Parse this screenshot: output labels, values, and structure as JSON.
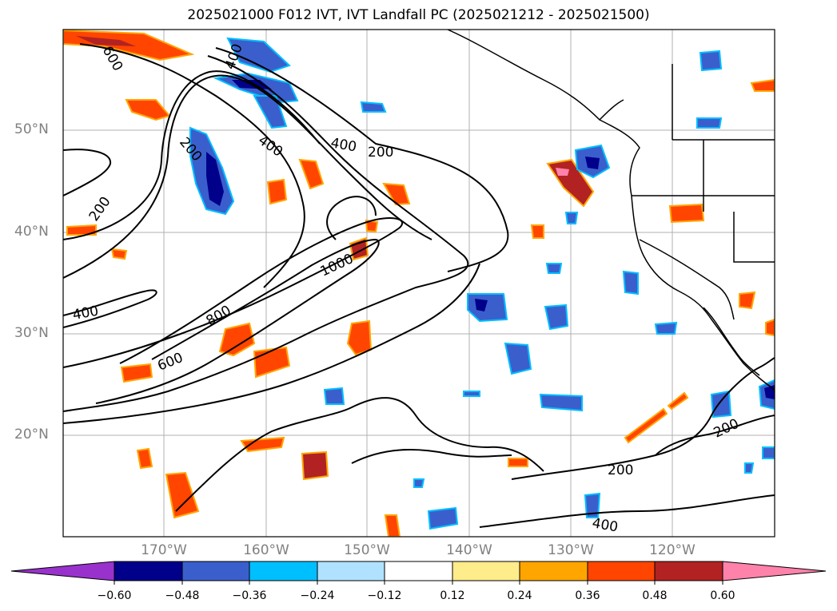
{
  "title": "2025021000 F012 IVT, IVT Landfall PC (2025021212 - 2025021500)",
  "lat_labels": [
    "50°N",
    "40°N",
    "30°N",
    "20°N"
  ],
  "lon_labels": [
    "170°W",
    "160°W",
    "150°W",
    "140°W",
    "130°W",
    "120°W"
  ],
  "colorbar": {
    "ticks": [
      "−0.60",
      "−0.48",
      "−0.36",
      "−0.24",
      "−0.12",
      "0.12",
      "0.24",
      "0.36",
      "0.48",
      "0.60"
    ],
    "colors": [
      "#9932cc",
      "#00008b",
      "#3a5fcd",
      "#00bfff",
      "#b0e2ff",
      "#ffffff",
      "#ffec8b",
      "#ffa500",
      "#ff4500",
      "#b22222",
      "#ff82ab"
    ]
  },
  "contour_labels": [
    "600",
    "400",
    "400",
    "200",
    "400",
    "200",
    "200",
    "1000",
    "800",
    "600",
    "400",
    "200",
    "200",
    "400"
  ],
  "colors": {
    "land_outline": "#000000",
    "grid": "#b0b0b0",
    "label_gray": "#808080"
  }
}
